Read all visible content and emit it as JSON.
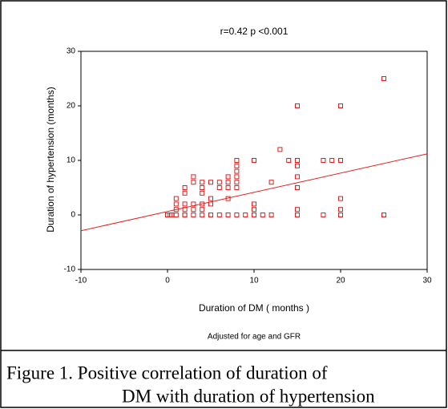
{
  "chart_data": {
    "type": "scatter",
    "title": "r=0.42  p <0.001",
    "x_label": "Duration of DM           ( months )",
    "y_label": "Duration of hypertension      (months)",
    "subtitle": "Adjusted for age and GFR",
    "caption": [
      "Figure 1. Positive correlation of duration of",
      "DM with duration of  hypertension"
    ],
    "color": "#e02020",
    "xlim": [
      -10,
      30
    ],
    "ylim": [
      -10,
      30
    ],
    "xticks": [
      -10,
      0,
      10,
      20,
      30
    ],
    "yticks": [
      -10,
      0,
      10,
      20,
      30
    ],
    "x": [
      0,
      0.3,
      0.5,
      1,
      1,
      1,
      1,
      2,
      2,
      2,
      2,
      2,
      2,
      3,
      3,
      3,
      3,
      3,
      4,
      4,
      4,
      4,
      4,
      4,
      5,
      5,
      5,
      5,
      6,
      6,
      6,
      7,
      7,
      7,
      7,
      7,
      8,
      8,
      8,
      8,
      8,
      8,
      8,
      9,
      10,
      10,
      10,
      10,
      11,
      12,
      12,
      13,
      14,
      15,
      15,
      15,
      15,
      15,
      15,
      15,
      18,
      18,
      19,
      20,
      20,
      20,
      20,
      20,
      25,
      25
    ],
    "values": [
      0,
      0,
      0,
      0,
      1,
      2,
      3,
      0,
      0,
      1,
      2,
      4,
      5,
      0,
      1,
      2,
      6,
      7,
      0,
      1,
      2,
      4,
      5,
      6,
      0,
      2,
      3,
      6,
      0,
      5,
      6,
      0,
      3,
      5,
      6,
      7,
      0,
      5,
      6,
      7,
      8,
      9,
      10,
      0,
      0,
      1,
      2,
      10,
      0,
      0,
      6,
      12,
      10,
      0,
      1,
      5,
      7,
      9,
      10,
      20,
      0,
      10,
      10,
      0,
      1,
      3,
      10,
      20,
      0,
      25
    ],
    "fit_line": {
      "x": [
        -10,
        30
      ],
      "y": [
        -2.9,
        11.2
      ]
    }
  }
}
